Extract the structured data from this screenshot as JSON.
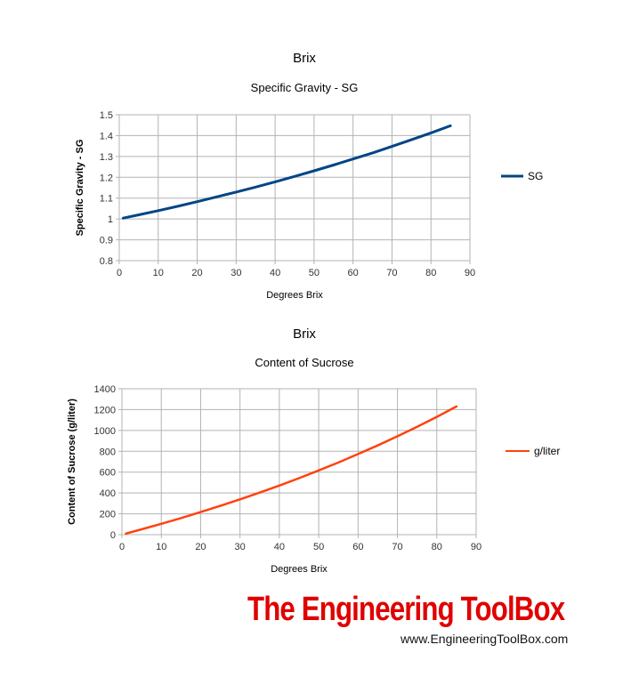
{
  "chart_data": [
    {
      "type": "line",
      "title": "Brix",
      "subtitle": "Specific Gravity - SG",
      "xlabel": "Degrees Brix",
      "ylabel": "Specific Gravity - SG",
      "xlim": [
        0,
        90
      ],
      "ylim": [
        0.8,
        1.5
      ],
      "xticks": [
        0,
        10,
        20,
        30,
        40,
        50,
        60,
        70,
        80,
        90
      ],
      "yticks": [
        "0.8",
        "0.9",
        "1",
        "1.1",
        "1.2",
        "1.3",
        "1.4",
        "1.5"
      ],
      "grid": true,
      "legend_position": "right",
      "series": [
        {
          "name": "SG",
          "color": "#004586",
          "x": [
            1,
            5,
            10,
            15,
            20,
            25,
            30,
            35,
            40,
            45,
            50,
            55,
            60,
            65,
            70,
            75,
            80,
            85
          ],
          "y": [
            1.004,
            1.02,
            1.04,
            1.061,
            1.083,
            1.106,
            1.129,
            1.153,
            1.178,
            1.204,
            1.231,
            1.259,
            1.288,
            1.317,
            1.348,
            1.38,
            1.413,
            1.447
          ]
        }
      ]
    },
    {
      "type": "line",
      "title": "Brix",
      "subtitle": "Content of Sucrose",
      "xlabel": "Degrees Brix",
      "ylabel": "Content of Sucrose (g/liter)",
      "xlim": [
        0,
        90
      ],
      "ylim": [
        0,
        1400
      ],
      "xticks": [
        0,
        10,
        20,
        30,
        40,
        50,
        60,
        70,
        80,
        90
      ],
      "yticks": [
        "0",
        "200",
        "400",
        "600",
        "800",
        "1000",
        "1200",
        "1400"
      ],
      "grid": true,
      "legend_position": "right",
      "series": [
        {
          "name": "g/liter",
          "color": "#ff420e",
          "x": [
            1,
            5,
            10,
            15,
            20,
            25,
            30,
            35,
            40,
            45,
            50,
            55,
            60,
            65,
            70,
            75,
            80,
            85
          ],
          "y": [
            10,
            51,
            104,
            159,
            217,
            277,
            339,
            404,
            471,
            542,
            616,
            692,
            773,
            856,
            944,
            1035,
            1130,
            1230
          ]
        }
      ]
    }
  ],
  "branding": {
    "name": "The Engineering ToolBox",
    "url": "www.EngineeringToolBox.com"
  }
}
